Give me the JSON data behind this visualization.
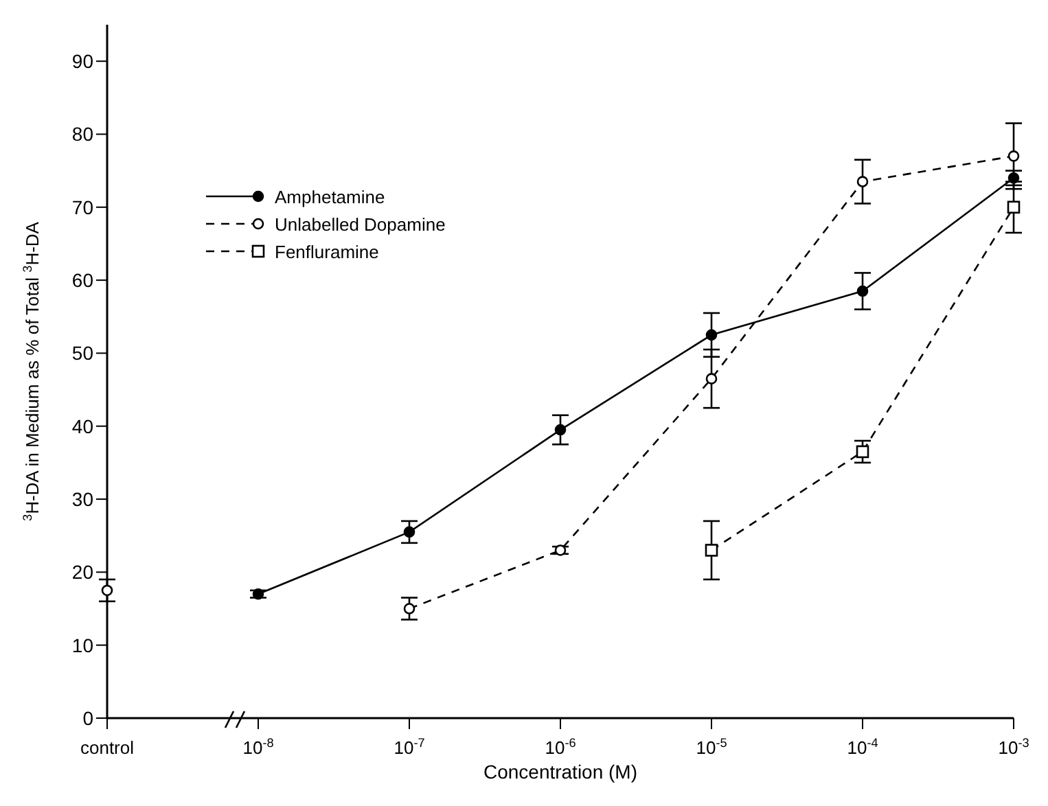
{
  "chart_data": {
    "type": "line",
    "xlabel": "Concentration (M)",
    "ylabel": "$^{3}$H-DA in Medium as % of Total $^{3}$H-DA",
    "categories": [
      "control",
      "10$^{-8}$",
      "10$^{-7}$",
      "10$^{-6}$",
      "10$^{-5}$",
      "10$^{-4}$",
      "10$^{-3}$"
    ],
    "series": [
      {
        "name": "Amphetamine",
        "color": "#000000",
        "line_style": "solid",
        "marker": "circle",
        "values": [
          null,
          17,
          25.5,
          39.5,
          52.5,
          58.5,
          74
        ],
        "errors": [
          null,
          0.5,
          1.5,
          2,
          3,
          2.5,
          1
        ]
      },
      {
        "name": "Unlabelled Dopamine",
        "color": "#000000",
        "line_style": "dashed",
        "marker": "circle",
        "values": [
          null,
          null,
          15,
          23,
          46.5,
          73.5,
          77
        ],
        "errors": [
          null,
          null,
          1.5,
          0.5,
          4,
          3,
          4.5
        ]
      },
      {
        "name": "Fenfluramine",
        "color": "#000000",
        "line_style": "dashed",
        "marker": "square",
        "values": [
          null,
          null,
          null,
          null,
          23,
          36.5,
          70
        ],
        "errors": [
          null,
          null,
          null,
          null,
          4,
          1.5,
          3.5
        ]
      },
      {
        "type": "scatter",
        "color": "#000000",
        "marker": "circle",
        "values": [
          17.5,
          null,
          null,
          null,
          null,
          null,
          null
        ],
        "errors": [
          1.5,
          null,
          null,
          null,
          null,
          null,
          null
        ]
      }
    ],
    "ylim": [
      0,
      95
    ],
    "yticks": [
      0,
      10,
      20,
      30,
      40,
      50,
      60,
      70,
      80,
      90
    ],
    "grid": false,
    "legend": "top left"
  }
}
